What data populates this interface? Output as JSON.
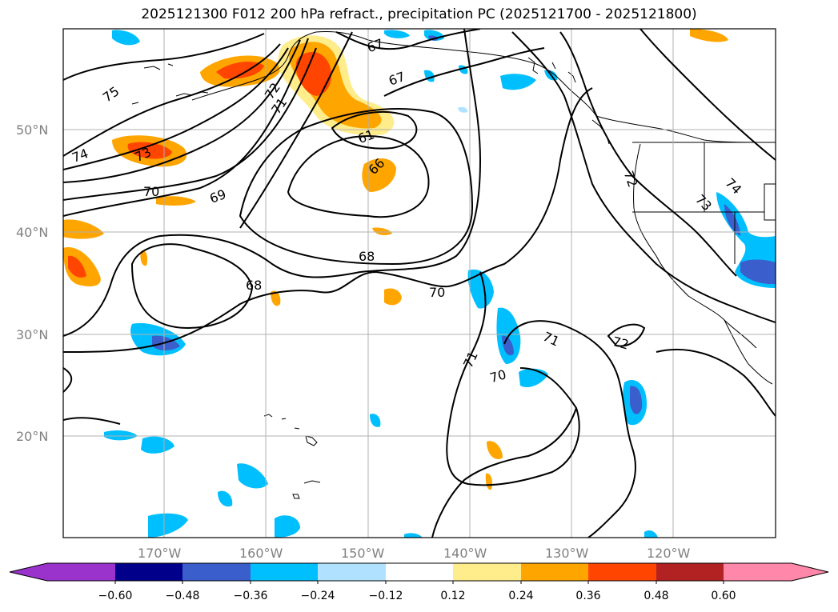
{
  "title": "2025121300 F012 200 hPa refract., precipitation PC (2025121700 - 2025121800)",
  "lat_labels": [
    "50°N",
    "40°N",
    "30°N",
    "20°N"
  ],
  "lon_labels": [
    "170°W",
    "160°W",
    "150°W",
    "140°W",
    "130°W",
    "120°W"
  ],
  "colorbar": {
    "ticks": [
      "−0.60",
      "−0.48",
      "−0.36",
      "−0.24",
      "−0.12",
      "0.12",
      "0.24",
      "0.36",
      "0.48",
      "0.60"
    ],
    "colors": [
      "#9933cc",
      "#00008b",
      "#3a5fcd",
      "#00bfff",
      "#b0e2ff",
      "#ffffff",
      "#ffec8b",
      "#ffa500",
      "#ff4500",
      "#b22222",
      "#ff88aa"
    ]
  },
  "contour_labels": [
    "75",
    "74",
    "73",
    "70",
    "69",
    "72",
    "71",
    "67",
    "67",
    "61",
    "66",
    "68",
    "68",
    "70",
    "71",
    "71",
    "70",
    "72",
    "72",
    "73",
    "74"
  ],
  "palette": {
    "land_coast": "#000000",
    "grid": "#b0b0b0",
    "contour": "#000000"
  }
}
